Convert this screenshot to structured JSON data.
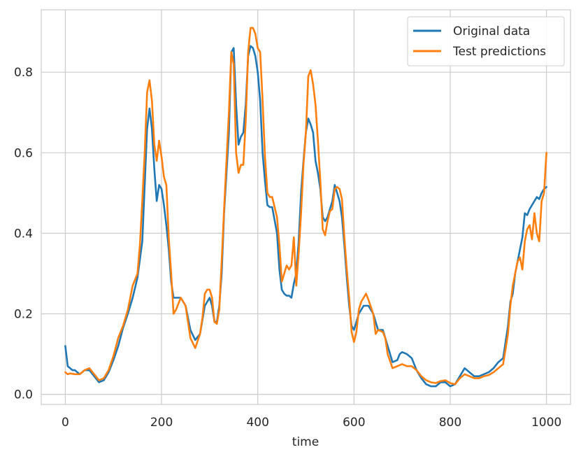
{
  "chart_data": {
    "type": "line",
    "title": "",
    "xlabel": "time",
    "ylabel": "",
    "xlim": [
      -50,
      1050
    ],
    "ylim": [
      -0.025,
      0.955
    ],
    "xticks": [
      0,
      200,
      400,
      600,
      800,
      1000
    ],
    "yticks": [
      0.0,
      0.2,
      0.4,
      0.6,
      0.8
    ],
    "xtick_labels": [
      "0",
      "200",
      "400",
      "600",
      "800",
      "1000"
    ],
    "ytick_labels": [
      "0.0",
      "0.2",
      "0.4",
      "0.6",
      "0.8"
    ],
    "grid": true,
    "legend_position": "top-right",
    "series": [
      {
        "name": "Original data",
        "color": "#1f77b4",
        "points": [
          [
            0,
            0.12
          ],
          [
            5,
            0.07
          ],
          [
            10,
            0.065
          ],
          [
            15,
            0.06
          ],
          [
            20,
            0.06
          ],
          [
            25,
            0.055
          ],
          [
            30,
            0.05
          ],
          [
            40,
            0.06
          ],
          [
            50,
            0.06
          ],
          [
            60,
            0.045
          ],
          [
            70,
            0.03
          ],
          [
            80,
            0.035
          ],
          [
            90,
            0.055
          ],
          [
            100,
            0.085
          ],
          [
            110,
            0.12
          ],
          [
            120,
            0.165
          ],
          [
            130,
            0.2
          ],
          [
            140,
            0.24
          ],
          [
            150,
            0.29
          ],
          [
            160,
            0.38
          ],
          [
            165,
            0.52
          ],
          [
            170,
            0.66
          ],
          [
            175,
            0.71
          ],
          [
            180,
            0.66
          ],
          [
            185,
            0.56
          ],
          [
            190,
            0.48
          ],
          [
            195,
            0.52
          ],
          [
            200,
            0.51
          ],
          [
            205,
            0.47
          ],
          [
            210,
            0.42
          ],
          [
            215,
            0.36
          ],
          [
            220,
            0.28
          ],
          [
            225,
            0.24
          ],
          [
            230,
            0.24
          ],
          [
            240,
            0.24
          ],
          [
            250,
            0.22
          ],
          [
            260,
            0.16
          ],
          [
            270,
            0.135
          ],
          [
            280,
            0.15
          ],
          [
            290,
            0.22
          ],
          [
            300,
            0.24
          ],
          [
            305,
            0.22
          ],
          [
            310,
            0.18
          ],
          [
            315,
            0.18
          ],
          [
            320,
            0.22
          ],
          [
            325,
            0.3
          ],
          [
            330,
            0.45
          ],
          [
            340,
            0.65
          ],
          [
            345,
            0.85
          ],
          [
            350,
            0.86
          ],
          [
            355,
            0.72
          ],
          [
            360,
            0.62
          ],
          [
            365,
            0.64
          ],
          [
            370,
            0.65
          ],
          [
            375,
            0.72
          ],
          [
            380,
            0.84
          ],
          [
            385,
            0.865
          ],
          [
            390,
            0.86
          ],
          [
            395,
            0.84
          ],
          [
            400,
            0.8
          ],
          [
            405,
            0.73
          ],
          [
            410,
            0.6
          ],
          [
            415,
            0.53
          ],
          [
            420,
            0.47
          ],
          [
            425,
            0.465
          ],
          [
            430,
            0.465
          ],
          [
            440,
            0.4
          ],
          [
            445,
            0.31
          ],
          [
            450,
            0.26
          ],
          [
            455,
            0.25
          ],
          [
            460,
            0.245
          ],
          [
            465,
            0.245
          ],
          [
            470,
            0.24
          ],
          [
            475,
            0.275
          ],
          [
            480,
            0.3
          ],
          [
            485,
            0.38
          ],
          [
            490,
            0.5
          ],
          [
            495,
            0.58
          ],
          [
            500,
            0.65
          ],
          [
            505,
            0.685
          ],
          [
            510,
            0.67
          ],
          [
            515,
            0.65
          ],
          [
            520,
            0.58
          ],
          [
            525,
            0.55
          ],
          [
            530,
            0.51
          ],
          [
            535,
            0.44
          ],
          [
            540,
            0.43
          ],
          [
            545,
            0.44
          ],
          [
            550,
            0.46
          ],
          [
            555,
            0.48
          ],
          [
            560,
            0.52
          ],
          [
            565,
            0.5
          ],
          [
            570,
            0.48
          ],
          [
            575,
            0.44
          ],
          [
            580,
            0.37
          ],
          [
            585,
            0.29
          ],
          [
            590,
            0.22
          ],
          [
            595,
            0.17
          ],
          [
            600,
            0.16
          ],
          [
            605,
            0.18
          ],
          [
            610,
            0.2
          ],
          [
            620,
            0.22
          ],
          [
            630,
            0.22
          ],
          [
            640,
            0.2
          ],
          [
            650,
            0.16
          ],
          [
            660,
            0.16
          ],
          [
            670,
            0.12
          ],
          [
            680,
            0.08
          ],
          [
            690,
            0.085
          ],
          [
            695,
            0.1
          ],
          [
            700,
            0.105
          ],
          [
            710,
            0.1
          ],
          [
            720,
            0.09
          ],
          [
            730,
            0.06
          ],
          [
            740,
            0.04
          ],
          [
            750,
            0.025
          ],
          [
            760,
            0.02
          ],
          [
            770,
            0.02
          ],
          [
            780,
            0.03
          ],
          [
            790,
            0.03
          ],
          [
            800,
            0.02
          ],
          [
            810,
            0.025
          ],
          [
            820,
            0.045
          ],
          [
            830,
            0.065
          ],
          [
            840,
            0.055
          ],
          [
            850,
            0.045
          ],
          [
            860,
            0.045
          ],
          [
            870,
            0.05
          ],
          [
            880,
            0.055
          ],
          [
            890,
            0.065
          ],
          [
            900,
            0.08
          ],
          [
            910,
            0.09
          ],
          [
            920,
            0.17
          ],
          [
            925,
            0.23
          ],
          [
            930,
            0.25
          ],
          [
            935,
            0.3
          ],
          [
            940,
            0.33
          ],
          [
            945,
            0.36
          ],
          [
            950,
            0.39
          ],
          [
            955,
            0.45
          ],
          [
            960,
            0.445
          ],
          [
            965,
            0.46
          ],
          [
            970,
            0.47
          ],
          [
            975,
            0.48
          ],
          [
            980,
            0.49
          ],
          [
            985,
            0.485
          ],
          [
            990,
            0.5
          ],
          [
            995,
            0.51
          ],
          [
            1000,
            0.515
          ]
        ]
      },
      {
        "name": "Test predictions",
        "color": "#ff7f0e",
        "points": [
          [
            0,
            0.055
          ],
          [
            5,
            0.05
          ],
          [
            10,
            0.052
          ],
          [
            20,
            0.05
          ],
          [
            30,
            0.05
          ],
          [
            40,
            0.06
          ],
          [
            50,
            0.065
          ],
          [
            60,
            0.05
          ],
          [
            70,
            0.035
          ],
          [
            80,
            0.04
          ],
          [
            90,
            0.06
          ],
          [
            100,
            0.095
          ],
          [
            110,
            0.14
          ],
          [
            120,
            0.17
          ],
          [
            130,
            0.21
          ],
          [
            140,
            0.27
          ],
          [
            150,
            0.3
          ],
          [
            155,
            0.37
          ],
          [
            160,
            0.48
          ],
          [
            165,
            0.6
          ],
          [
            170,
            0.75
          ],
          [
            175,
            0.78
          ],
          [
            180,
            0.73
          ],
          [
            185,
            0.62
          ],
          [
            190,
            0.58
          ],
          [
            195,
            0.63
          ],
          [
            200,
            0.59
          ],
          [
            205,
            0.54
          ],
          [
            210,
            0.52
          ],
          [
            215,
            0.39
          ],
          [
            220,
            0.3
          ],
          [
            225,
            0.2
          ],
          [
            230,
            0.21
          ],
          [
            240,
            0.24
          ],
          [
            250,
            0.22
          ],
          [
            260,
            0.14
          ],
          [
            270,
            0.115
          ],
          [
            280,
            0.15
          ],
          [
            285,
            0.19
          ],
          [
            290,
            0.25
          ],
          [
            295,
            0.26
          ],
          [
            300,
            0.26
          ],
          [
            305,
            0.24
          ],
          [
            310,
            0.18
          ],
          [
            315,
            0.175
          ],
          [
            320,
            0.21
          ],
          [
            325,
            0.33
          ],
          [
            330,
            0.46
          ],
          [
            340,
            0.7
          ],
          [
            345,
            0.85
          ],
          [
            350,
            0.82
          ],
          [
            355,
            0.6
          ],
          [
            360,
            0.55
          ],
          [
            365,
            0.57
          ],
          [
            370,
            0.57
          ],
          [
            375,
            0.68
          ],
          [
            380,
            0.85
          ],
          [
            385,
            0.91
          ],
          [
            390,
            0.91
          ],
          [
            395,
            0.895
          ],
          [
            400,
            0.86
          ],
          [
            405,
            0.85
          ],
          [
            410,
            0.73
          ],
          [
            415,
            0.59
          ],
          [
            420,
            0.5
          ],
          [
            425,
            0.49
          ],
          [
            430,
            0.49
          ],
          [
            440,
            0.44
          ],
          [
            445,
            0.37
          ],
          [
            450,
            0.28
          ],
          [
            455,
            0.3
          ],
          [
            460,
            0.32
          ],
          [
            465,
            0.31
          ],
          [
            470,
            0.32
          ],
          [
            475,
            0.39
          ],
          [
            480,
            0.27
          ],
          [
            485,
            0.35
          ],
          [
            490,
            0.45
          ],
          [
            495,
            0.57
          ],
          [
            500,
            0.65
          ],
          [
            505,
            0.79
          ],
          [
            510,
            0.805
          ],
          [
            515,
            0.77
          ],
          [
            520,
            0.72
          ],
          [
            525,
            0.63
          ],
          [
            530,
            0.53
          ],
          [
            535,
            0.41
          ],
          [
            540,
            0.395
          ],
          [
            545,
            0.43
          ],
          [
            550,
            0.455
          ],
          [
            555,
            0.46
          ],
          [
            560,
            0.51
          ],
          [
            565,
            0.515
          ],
          [
            570,
            0.51
          ],
          [
            575,
            0.485
          ],
          [
            580,
            0.39
          ],
          [
            585,
            0.31
          ],
          [
            590,
            0.24
          ],
          [
            595,
            0.155
          ],
          [
            600,
            0.13
          ],
          [
            605,
            0.155
          ],
          [
            610,
            0.21
          ],
          [
            615,
            0.23
          ],
          [
            620,
            0.24
          ],
          [
            625,
            0.25
          ],
          [
            630,
            0.235
          ],
          [
            640,
            0.2
          ],
          [
            645,
            0.15
          ],
          [
            650,
            0.16
          ],
          [
            660,
            0.155
          ],
          [
            665,
            0.14
          ],
          [
            670,
            0.1
          ],
          [
            680,
            0.065
          ],
          [
            690,
            0.07
          ],
          [
            700,
            0.075
          ],
          [
            710,
            0.07
          ],
          [
            720,
            0.07
          ],
          [
            730,
            0.06
          ],
          [
            740,
            0.045
          ],
          [
            750,
            0.035
          ],
          [
            760,
            0.03
          ],
          [
            770,
            0.028
          ],
          [
            780,
            0.033
          ],
          [
            790,
            0.035
          ],
          [
            800,
            0.028
          ],
          [
            810,
            0.025
          ],
          [
            820,
            0.04
          ],
          [
            830,
            0.05
          ],
          [
            840,
            0.045
          ],
          [
            850,
            0.04
          ],
          [
            860,
            0.04
          ],
          [
            870,
            0.045
          ],
          [
            880,
            0.048
          ],
          [
            890,
            0.055
          ],
          [
            900,
            0.065
          ],
          [
            910,
            0.075
          ],
          [
            920,
            0.15
          ],
          [
            925,
            0.22
          ],
          [
            930,
            0.27
          ],
          [
            935,
            0.3
          ],
          [
            940,
            0.33
          ],
          [
            945,
            0.34
          ],
          [
            950,
            0.31
          ],
          [
            955,
            0.38
          ],
          [
            960,
            0.41
          ],
          [
            965,
            0.42
          ],
          [
            970,
            0.385
          ],
          [
            975,
            0.45
          ],
          [
            980,
            0.4
          ],
          [
            985,
            0.38
          ],
          [
            990,
            0.48
          ],
          [
            995,
            0.5
          ],
          [
            1000,
            0.6
          ]
        ]
      }
    ]
  }
}
